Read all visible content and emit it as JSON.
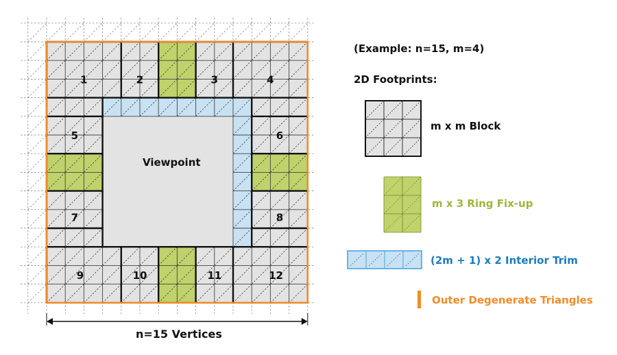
{
  "diagram": {
    "vertices_label": "n=15 Vertices",
    "viewpoint_label": "Viewpoint",
    "block_labels": [
      "1",
      "2",
      "3",
      "4",
      "5",
      "6",
      "7",
      "8",
      "9",
      "10",
      "11",
      "12"
    ]
  },
  "legend": {
    "example": "(Example: n=15, m=4)",
    "footprints_title": "2D Footprints:",
    "block": "m x m Block",
    "ring_fixup": "m x 3 Ring Fix-up",
    "interior_trim": "(2m + 1) x 2 Interior Trim",
    "outer_degenerate": "Outer Degenerate Triangles"
  },
  "colors": {
    "block_fill": "#e3e3e3",
    "fixup_fill": "#bfd26b",
    "trim_fill": "#c8e1f3",
    "trim_stroke": "#4aa3df",
    "outer_stroke": "#f28c28",
    "fixup_text": "#9db83a",
    "trim_text": "#1a7bc2",
    "outer_text": "#f28c28"
  }
}
